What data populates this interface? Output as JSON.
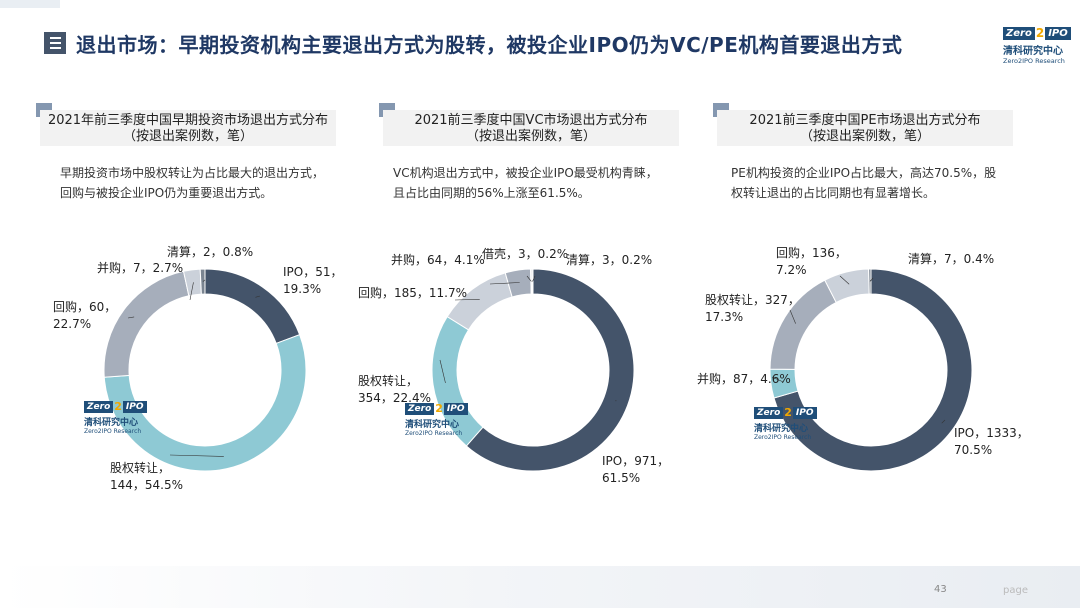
{
  "title": "退出市场：早期投资机构主要退出方式为股转，被投企业IPO仍为VC/PE机构首要退出方式",
  "logo": {
    "box_text": "Zero",
    "mark": "2",
    "box_text_2": "IPO",
    "cn": "清科研究中心",
    "en": "Zero2IPO Research"
  },
  "page_number": "43",
  "page_word": "page",
  "colors": {
    "dark": "#44546a",
    "teal": "#8ec9d4",
    "gray": "#a6aebb",
    "light": "#cbd1da",
    "darkest": "#7b8591"
  },
  "panels": [
    {
      "title_line1": "2021年前三季度中国早期投资市场退出方式分布",
      "title_line2": "（按退出案例数，笔）",
      "desc_line1": "早期投资市场中股权转让为占比最大的退出方式，",
      "desc_line2": "回购与被投企业IPO仍为重要退出方式。"
    },
    {
      "title_line1": "2021前三季度中国VC市场退出方式分布",
      "title_line2": "（按退出案例数，笔）",
      "desc_line1": "VC机构退出方式中，被投企业IPO最受机构青睐，",
      "desc_line2": "且占比由同期的56%上涨至61.5%。"
    },
    {
      "title_line1": "2021前三季度中国PE市场退出方式分布",
      "title_line2": "（按退出案例数，笔）",
      "desc_line1": "PE机构投资的企业IPO占比最大，高达70.5%，股",
      "desc_line2": "权转让退出的占比同期也有显著增长。"
    }
  ],
  "chart_data": [
    {
      "type": "pie",
      "title": "2021年前三季度中国早期投资市场退出方式分布",
      "slices": [
        {
          "name": "IPO",
          "value": 51,
          "percent": "19.3%",
          "label1": "IPO，51，",
          "label2": "19.3%",
          "color": "#44546a"
        },
        {
          "name": "股权转让",
          "value": 144,
          "percent": "54.5%",
          "label1": "股权转让，",
          "label2": "144，54.5%",
          "color": "#8ec9d4"
        },
        {
          "name": "回购",
          "value": 60,
          "percent": "22.7%",
          "label1": "回购，60，",
          "label2": "22.7%",
          "color": "#a6aebb"
        },
        {
          "name": "并购",
          "value": 7,
          "percent": "2.7%",
          "label1": "并购，7，2.7%",
          "label2": "",
          "color": "#cbd1da"
        },
        {
          "name": "清算",
          "value": 2,
          "percent": "0.8%",
          "label1": "清算，2，0.8%",
          "label2": "",
          "color": "#7b8591"
        }
      ]
    },
    {
      "type": "pie",
      "title": "2021前三季度中国VC市场退出方式分布",
      "slices": [
        {
          "name": "IPO",
          "value": 971,
          "percent": "61.5%",
          "label1": "IPO，971，",
          "label2": "61.5%",
          "color": "#44546a"
        },
        {
          "name": "股权转让",
          "value": 354,
          "percent": "22.4%",
          "label1": "股权转让，",
          "label2": "354，22.4%",
          "color": "#8ec9d4"
        },
        {
          "name": "回购",
          "value": 185,
          "percent": "11.7%",
          "label1": "回购，185，11.7%",
          "label2": "",
          "color": "#cbd1da"
        },
        {
          "name": "并购",
          "value": 64,
          "percent": "4.1%",
          "label1": "并购，64，4.1%",
          "label2": "",
          "color": "#a6aebb"
        },
        {
          "name": "借壳",
          "value": 3,
          "percent": "0.2%",
          "label1": "借壳，3，0.2%",
          "label2": "",
          "color": "#7b8591"
        },
        {
          "name": "清算",
          "value": 3,
          "percent": "0.2%",
          "label1": "清算，3，0.2%",
          "label2": "",
          "color": "#cbd1da"
        }
      ]
    },
    {
      "type": "pie",
      "title": "2021前三季度中国PE市场退出方式分布",
      "slices": [
        {
          "name": "IPO",
          "value": 1333,
          "percent": "70.5%",
          "label1": "IPO，1333，",
          "label2": "70.5%",
          "color": "#44546a"
        },
        {
          "name": "并购",
          "value": 87,
          "percent": "4.6%",
          "label1": "并购，87，4.6%",
          "label2": "",
          "color": "#8ec9d4"
        },
        {
          "name": "股权转让",
          "value": 327,
          "percent": "17.3%",
          "label1": "股权转让，327，",
          "label2": "17.3%",
          "color": "#a6aebb"
        },
        {
          "name": "回购",
          "value": 136,
          "percent": "7.2%",
          "label1": "回购，136，",
          "label2": "7.2%",
          "color": "#cbd1da"
        },
        {
          "name": "清算",
          "value": 7,
          "percent": "0.4%",
          "label1": "清算，7，0.4%",
          "label2": "",
          "color": "#7b8591"
        }
      ]
    }
  ]
}
